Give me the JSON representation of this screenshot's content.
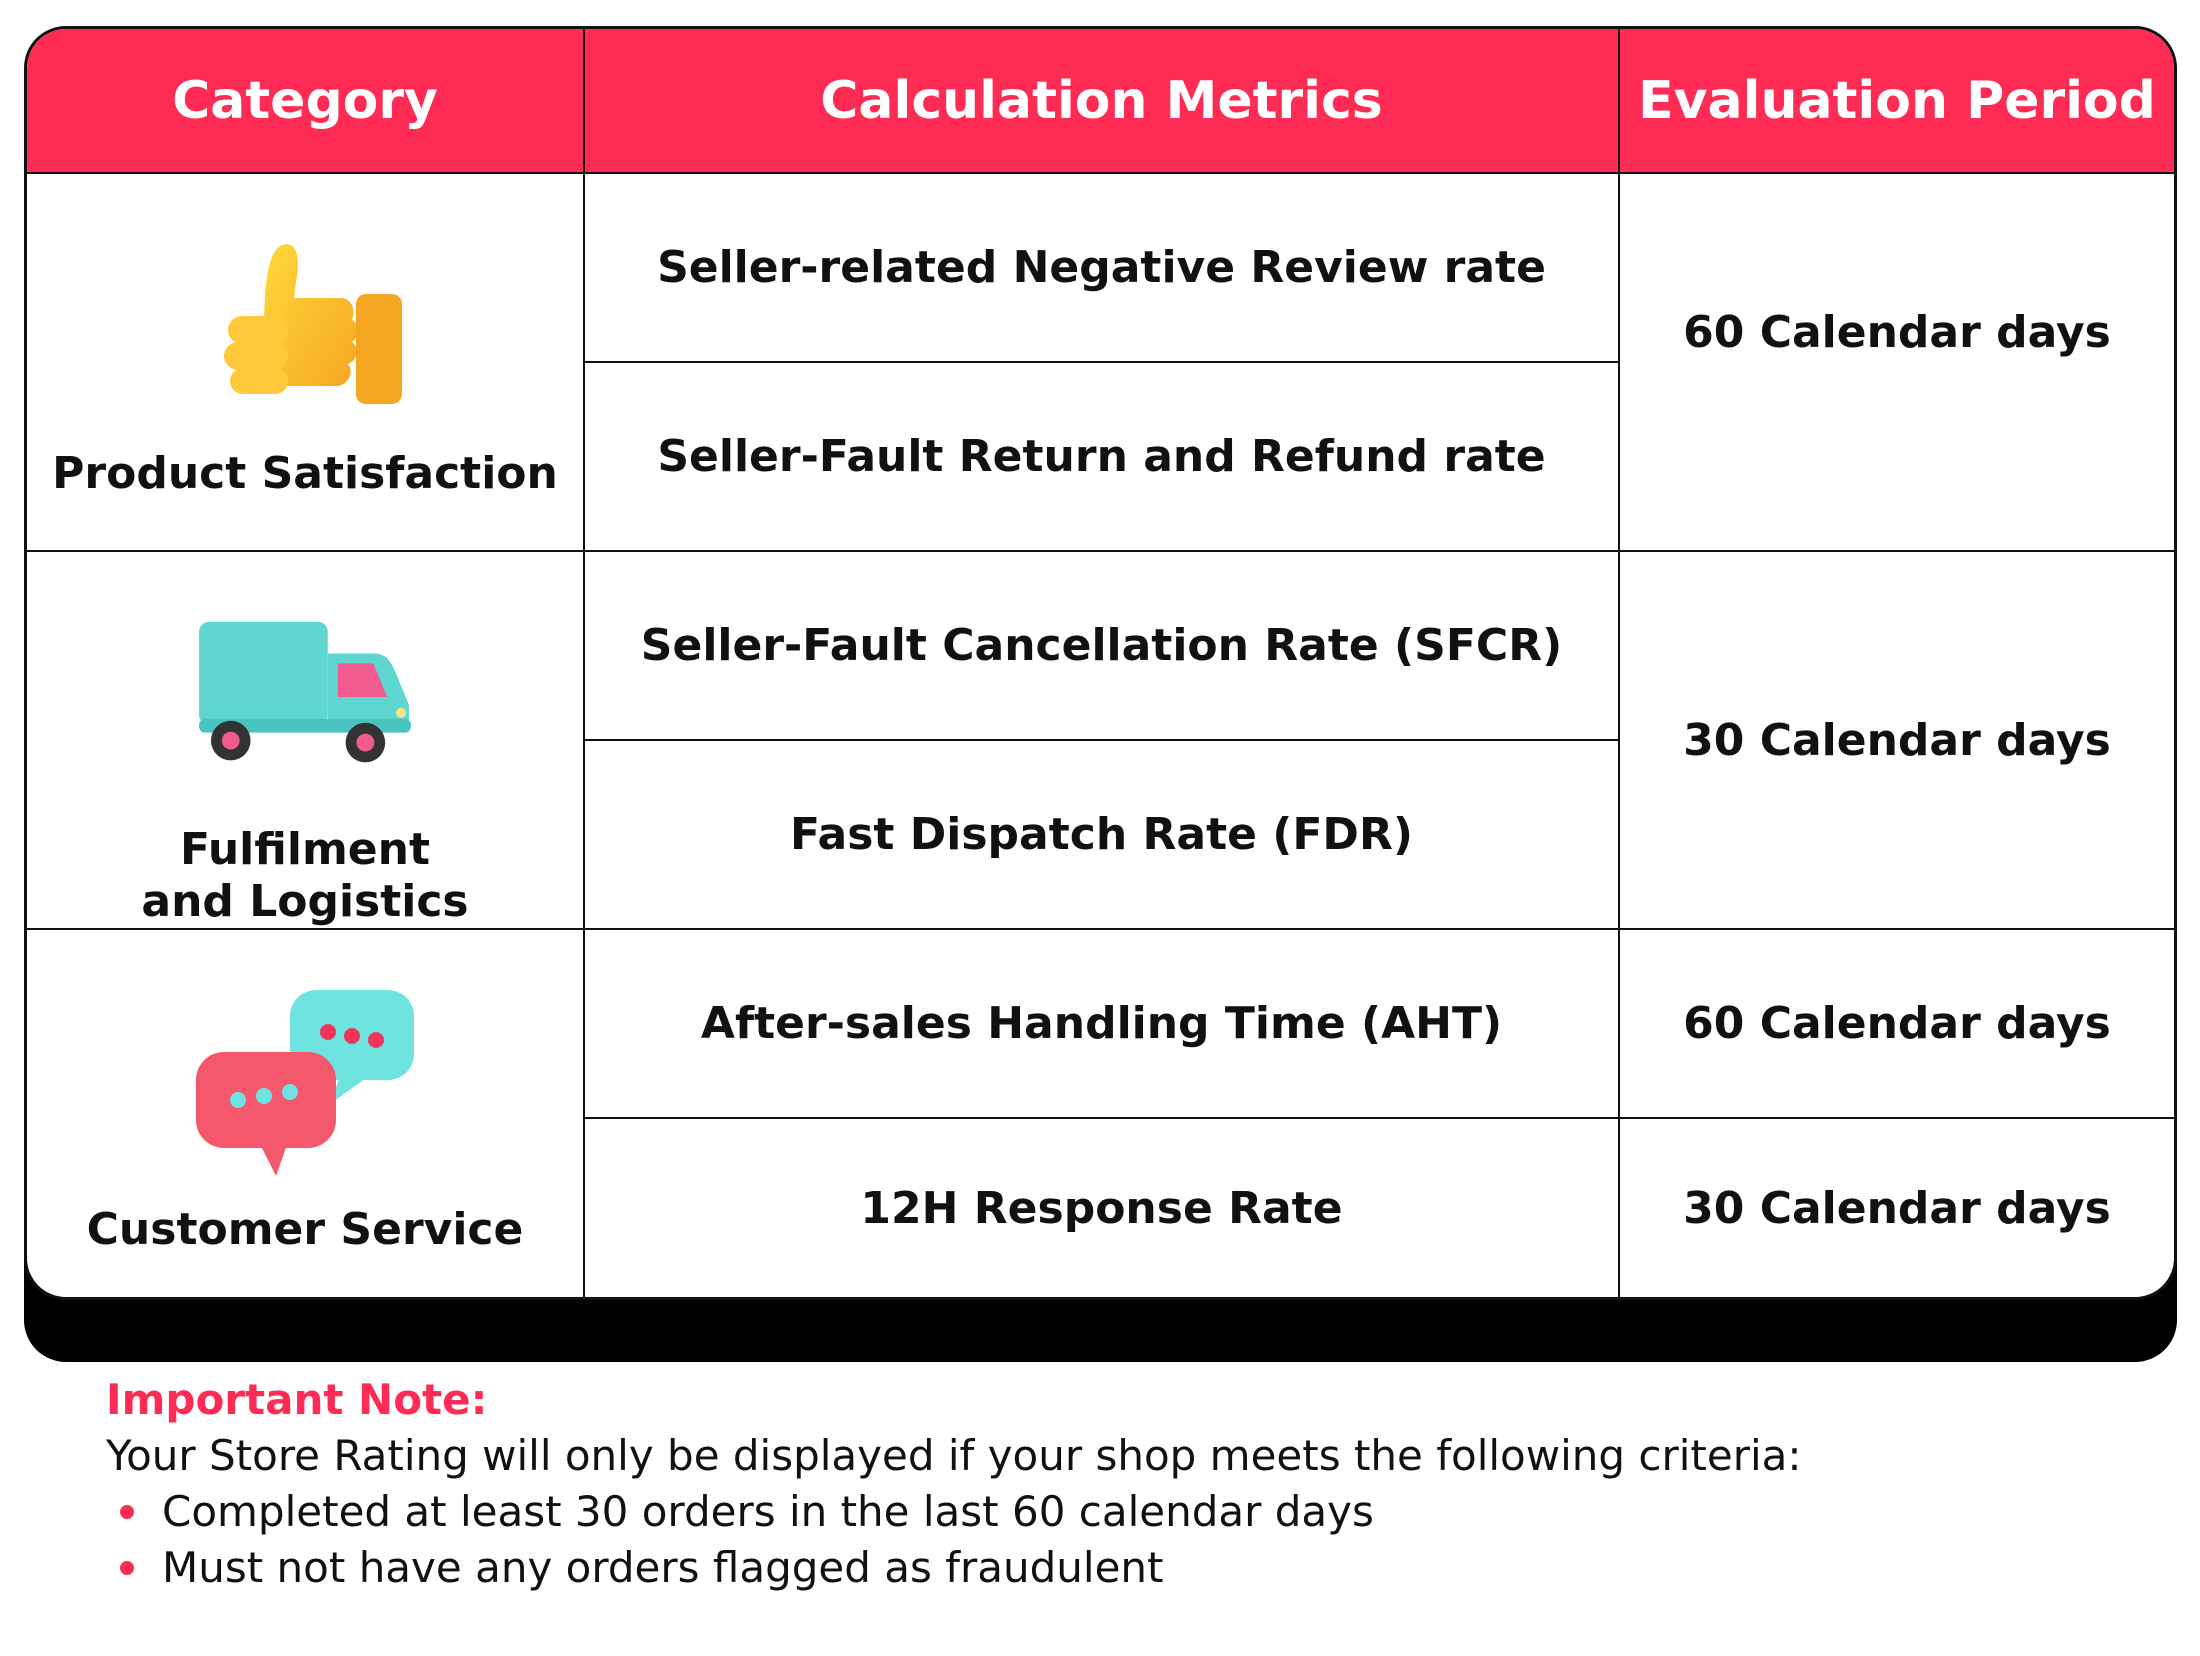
{
  "headers": {
    "category": "Category",
    "metrics": "Calculation Metrics",
    "period": "Evaluation Period"
  },
  "groups": [
    {
      "category": "Product Satisfaction",
      "icon": "thumbs-up-icon",
      "metrics": [
        "Seller-related Negative Review rate",
        "Seller-Fault Return and Refund rate"
      ],
      "periods": [
        "60 Calendar days"
      ]
    },
    {
      "category": "Fulfilment and Logistics",
      "icon": "delivery-truck-icon",
      "metrics": [
        "Seller-Fault Cancellation Rate (SFCR)",
        "Fast Dispatch Rate (FDR)"
      ],
      "periods": [
        "30 Calendar days"
      ]
    },
    {
      "category": "Customer Service",
      "icon": "chat-bubbles-icon",
      "metrics": [
        "After-sales Handling Time (AHT)",
        "12H Response Rate"
      ],
      "periods": [
        "60 Calendar days",
        "30 Calendar days"
      ]
    }
  ],
  "note": {
    "title": "Important Note:",
    "intro": "Your Store Rating will only be displayed if your shop meets the following criteria:",
    "criteria": [
      "Completed at least 30 orders in the last 60 calendar days",
      "Must not have any orders flagged as fraudulent"
    ]
  },
  "colors": {
    "accent": "#fe2c55",
    "border": "#111111",
    "text": "#111111"
  }
}
